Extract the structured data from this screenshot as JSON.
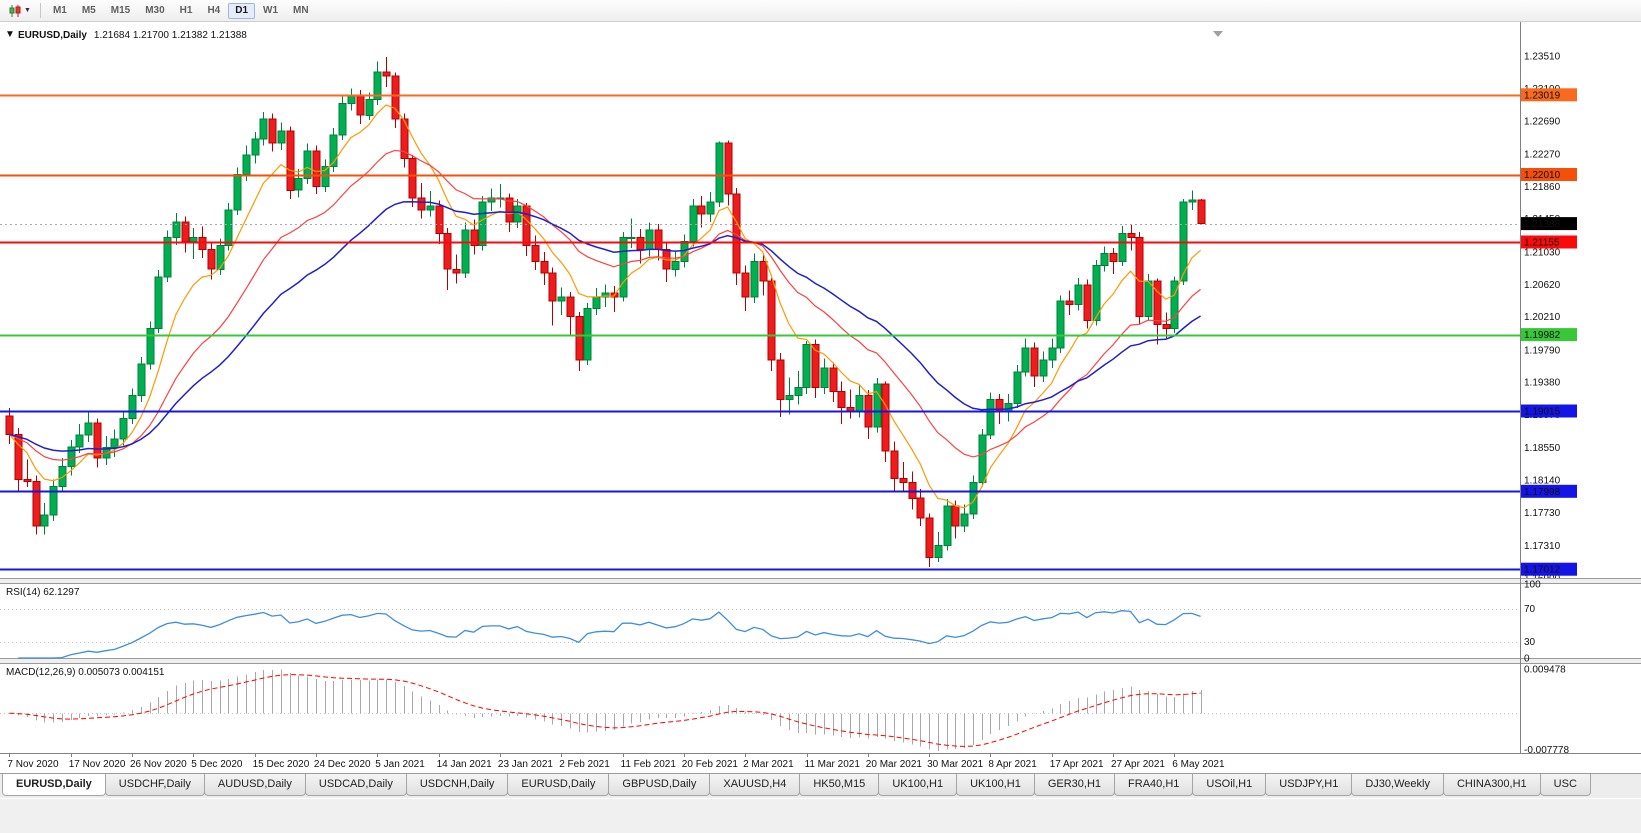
{
  "toolbar": {
    "timeframes": [
      "M1",
      "M5",
      "M15",
      "M30",
      "H1",
      "H4",
      "D1",
      "W1",
      "MN"
    ],
    "active_timeframe": "D1"
  },
  "chart": {
    "collapse_icon": "▼",
    "title_symbol": "EURUSD,Daily",
    "title_ohlc": "1.21684 1.21700 1.21382 1.21388"
  },
  "rsi": {
    "label": "RSI(14) 62.1297",
    "period": 14,
    "levels": [
      70,
      30
    ],
    "axis_labels": [
      "100",
      "70",
      "30",
      "0"
    ],
    "axis_values": [
      100,
      70,
      30,
      0
    ],
    "line_color": "#3E8EDE",
    "current": 62.1297
  },
  "macd": {
    "label": "MACD(12,26,9) 0.005073 0.004151",
    "fast": 12,
    "slow": 26,
    "signal": 9,
    "axis_top_label": "0.009478",
    "axis_bottom_label": "-0.007778",
    "axis_top_value": 0.009478,
    "axis_bottom_value": -0.007778,
    "histogram_color": "#A8A8A8",
    "signal_color": "#FF0000",
    "current_macd": 0.005073,
    "current_signal": 0.004151
  },
  "chart_data": {
    "type": "candlestick",
    "symbol": "EURUSD",
    "timeframe": "Daily",
    "last_candle": {
      "open": 1.21684,
      "high": 1.217,
      "low": 1.21382,
      "close": 1.21388
    },
    "colors": {
      "bull_fill": "#00B050",
      "bull_stroke": "#00803A",
      "bear_fill": "#EE1C1C",
      "bear_stroke": "#B40000",
      "axis_line": "#808080",
      "current_line": "#A8A8A8"
    },
    "y_axis": {
      "max": 1.2384,
      "min": 1.169,
      "tick_labels": [
        "1.23510",
        "1.23100",
        "1.22690",
        "1.22270",
        "1.21860",
        "1.21450",
        "1.21030",
        "1.20620",
        "1.20210",
        "1.19790",
        "1.19380",
        "1.18970",
        "1.18550",
        "1.18140",
        "1.17730",
        "1.17310",
        "1.16900"
      ]
    },
    "x_axis": {
      "label_indices": [
        0,
        7,
        14,
        21,
        28,
        35,
        42,
        49,
        56,
        63,
        70,
        77,
        84,
        91,
        98,
        105,
        112,
        119,
        126,
        133
      ],
      "labels": [
        "7 Nov 2020",
        "17 Nov 2020",
        "26 Nov 2020",
        "5 Dec 2020",
        "15 Dec 2020",
        "24 Dec 2020",
        "5 Jan 2021",
        "14 Jan 2021",
        "23 Jan 2021",
        "2 Feb 2021",
        "11 Feb 2021",
        "20 Feb 2021",
        "2 Mar 2021",
        "11 Mar 2021",
        "20 Mar 2021",
        "30 Mar 2021",
        "8 Apr 2021",
        "17 Apr 2021",
        "27 Apr 2021",
        "6 May 2021"
      ]
    },
    "moving_averages": [
      {
        "name": "ma-fast",
        "period": 8,
        "color": "#FF9900",
        "width": 1.2
      },
      {
        "name": "ma-mid",
        "period": 20,
        "color": "#FF4040",
        "width": 1.2
      },
      {
        "name": "ma-slow",
        "period": 35,
        "color": "#2020CC",
        "width": 1.5
      }
    ],
    "hlines": [
      {
        "price": 1.23019,
        "label": "1.23019",
        "color": "#F96A1C"
      },
      {
        "price": 1.2201,
        "label": "1.22010",
        "color": "#F4500A"
      },
      {
        "price": 1.21155,
        "label": "1.21155",
        "color": "#FA0A0A"
      },
      {
        "price": 1.19982,
        "label": "1.19982",
        "color": "#37C837"
      },
      {
        "price": 1.19015,
        "label": "1.19015",
        "color": "#1414E6"
      },
      {
        "price": 1.17998,
        "label": "1.17998",
        "color": "#1414E6"
      },
      {
        "price": 1.17012,
        "label": "1.17012",
        "color": "#1414E6"
      }
    ],
    "current_price": {
      "value": 1.21388,
      "label": "1.21388",
      "badge_color": "#000000"
    },
    "candles": [
      [
        1.1895,
        1.1905,
        1.186,
        1.1872
      ],
      [
        1.1872,
        1.188,
        1.18,
        1.1815
      ],
      [
        1.1815,
        1.184,
        1.1805,
        1.1812
      ],
      [
        1.1812,
        1.182,
        1.1745,
        1.1756
      ],
      [
        1.1756,
        1.1785,
        1.1745,
        1.177
      ],
      [
        1.177,
        1.1815,
        1.1762,
        1.1806
      ],
      [
        1.1806,
        1.1842,
        1.1798,
        1.1831
      ],
      [
        1.1831,
        1.1865,
        1.182,
        1.1856
      ],
      [
        1.1856,
        1.1885,
        1.1848,
        1.1871
      ],
      [
        1.1871,
        1.19,
        1.1862,
        1.1886
      ],
      [
        1.1886,
        1.1892,
        1.183,
        1.1842
      ],
      [
        1.1842,
        1.187,
        1.1833,
        1.1855
      ],
      [
        1.1855,
        1.1878,
        1.1843,
        1.1866
      ],
      [
        1.1866,
        1.19,
        1.1858,
        1.1892
      ],
      [
        1.1892,
        1.193,
        1.1885,
        1.1921
      ],
      [
        1.1921,
        1.197,
        1.1913,
        1.1961
      ],
      [
        1.1961,
        1.2015,
        1.1954,
        1.2006
      ],
      [
        1.2006,
        1.208,
        1.2,
        1.2071
      ],
      [
        1.2071,
        1.213,
        1.2065,
        1.2121
      ],
      [
        1.2121,
        1.2152,
        1.2112,
        1.2141
      ],
      [
        1.2141,
        1.2148,
        1.2102,
        1.2116
      ],
      [
        1.2116,
        1.2133,
        1.2094,
        1.2121
      ],
      [
        1.2121,
        1.2135,
        1.2095,
        1.2106
      ],
      [
        1.2106,
        1.2114,
        1.2068,
        1.2081
      ],
      [
        1.2081,
        1.212,
        1.2074,
        1.2111
      ],
      [
        1.2111,
        1.2165,
        1.2105,
        1.2156
      ],
      [
        1.2156,
        1.221,
        1.215,
        1.2201
      ],
      [
        1.2201,
        1.2238,
        1.2193,
        1.2226
      ],
      [
        1.2226,
        1.2255,
        1.2215,
        1.2246
      ],
      [
        1.2246,
        1.228,
        1.2238,
        1.2271
      ],
      [
        1.2271,
        1.2278,
        1.223,
        1.2241
      ],
      [
        1.2241,
        1.2267,
        1.2232,
        1.2256
      ],
      [
        1.2256,
        1.2262,
        1.217,
        1.2181
      ],
      [
        1.2181,
        1.2208,
        1.2172,
        1.2196
      ],
      [
        1.2196,
        1.224,
        1.2189,
        1.2231
      ],
      [
        1.2231,
        1.2238,
        1.2176,
        1.2186
      ],
      [
        1.2186,
        1.222,
        1.2179,
        1.2211
      ],
      [
        1.2211,
        1.226,
        1.2204,
        1.2251
      ],
      [
        1.2251,
        1.23,
        1.2245,
        1.2291
      ],
      [
        1.2291,
        1.231,
        1.2282,
        1.2301
      ],
      [
        1.2301,
        1.2308,
        1.2265,
        1.2276
      ],
      [
        1.2276,
        1.2305,
        1.227,
        1.2296
      ],
      [
        1.2296,
        1.2344,
        1.2289,
        1.2331
      ],
      [
        1.2331,
        1.235,
        1.2312,
        1.2326
      ],
      [
        1.2326,
        1.233,
        1.226,
        1.2271
      ],
      [
        1.2271,
        1.2278,
        1.221,
        1.2221
      ],
      [
        1.2221,
        1.2226,
        1.216,
        1.2171
      ],
      [
        1.2171,
        1.219,
        1.2145,
        1.2156
      ],
      [
        1.2156,
        1.218,
        1.2148,
        1.2161
      ],
      [
        1.2161,
        1.2168,
        1.2113,
        1.2126
      ],
      [
        1.2126,
        1.2133,
        1.2055,
        1.2081
      ],
      [
        1.2081,
        1.21,
        1.2063,
        1.2076
      ],
      [
        1.2076,
        1.214,
        1.207,
        1.2131
      ],
      [
        1.2131,
        1.2144,
        1.21,
        1.2111
      ],
      [
        1.2111,
        1.2174,
        1.2105,
        1.2166
      ],
      [
        1.2166,
        1.2183,
        1.2155,
        1.2171
      ],
      [
        1.2171,
        1.2189,
        1.2159,
        1.2171
      ],
      [
        1.2171,
        1.2177,
        1.2128,
        1.2141
      ],
      [
        1.2141,
        1.217,
        1.2133,
        1.2161
      ],
      [
        1.2161,
        1.2165,
        1.2098,
        1.2111
      ],
      [
        1.2111,
        1.2124,
        1.208,
        1.2091
      ],
      [
        1.2091,
        1.2103,
        1.2061,
        1.2076
      ],
      [
        1.2076,
        1.2083,
        1.201,
        1.2041
      ],
      [
        1.2041,
        1.2058,
        1.2023,
        1.2046
      ],
      [
        1.2046,
        1.2052,
        1.1996,
        1.2021
      ],
      [
        1.2021,
        1.2027,
        1.1952,
        1.1966
      ],
      [
        1.1966,
        1.2038,
        1.196,
        1.2031
      ],
      [
        1.2031,
        1.2057,
        1.2023,
        1.2046
      ],
      [
        1.2046,
        1.2062,
        1.2033,
        1.2051
      ],
      [
        1.2051,
        1.206,
        1.2027,
        1.2046
      ],
      [
        1.2046,
        1.2128,
        1.204,
        1.2121
      ],
      [
        1.2121,
        1.2145,
        1.2108,
        1.2121
      ],
      [
        1.2121,
        1.2132,
        1.2088,
        1.2106
      ],
      [
        1.2106,
        1.214,
        1.2097,
        1.2131
      ],
      [
        1.2131,
        1.2138,
        1.2092,
        1.2106
      ],
      [
        1.2106,
        1.2116,
        1.2065,
        1.2081
      ],
      [
        1.2081,
        1.2105,
        1.2072,
        1.2091
      ],
      [
        1.2091,
        1.2125,
        1.2083,
        1.2116
      ],
      [
        1.2116,
        1.217,
        1.211,
        1.2161
      ],
      [
        1.2161,
        1.2174,
        1.2134,
        1.2151
      ],
      [
        1.2151,
        1.2179,
        1.2141,
        1.2166
      ],
      [
        1.2166,
        1.2243,
        1.216,
        1.2241
      ],
      [
        1.2241,
        1.2244,
        1.2162,
        1.2176
      ],
      [
        1.2176,
        1.2184,
        1.2061,
        1.2076
      ],
      [
        1.2076,
        1.2086,
        1.2028,
        1.2046
      ],
      [
        1.2046,
        1.2101,
        1.2038,
        1.2091
      ],
      [
        1.2091,
        1.2101,
        1.2048,
        1.2066
      ],
      [
        1.2066,
        1.207,
        1.1952,
        1.1966
      ],
      [
        1.1966,
        1.1975,
        1.1894,
        1.1916
      ],
      [
        1.1916,
        1.1944,
        1.1897,
        1.1921
      ],
      [
        1.1921,
        1.1952,
        1.191,
        1.1931
      ],
      [
        1.1931,
        1.199,
        1.1923,
        1.1986
      ],
      [
        1.1986,
        1.1992,
        1.1918,
        1.1931
      ],
      [
        1.1931,
        1.1968,
        1.1923,
        1.1956
      ],
      [
        1.1956,
        1.1963,
        1.1913,
        1.1926
      ],
      [
        1.1926,
        1.1939,
        1.1885,
        1.1906
      ],
      [
        1.1906,
        1.1929,
        1.1892,
        1.1901
      ],
      [
        1.1901,
        1.1935,
        1.1893,
        1.1921
      ],
      [
        1.1921,
        1.1928,
        1.1866,
        1.1881
      ],
      [
        1.1881,
        1.1943,
        1.1874,
        1.1936
      ],
      [
        1.1936,
        1.1939,
        1.1837,
        1.1851
      ],
      [
        1.1851,
        1.1863,
        1.18,
        1.1816
      ],
      [
        1.1816,
        1.1837,
        1.1798,
        1.1811
      ],
      [
        1.1811,
        1.1825,
        1.1777,
        1.1791
      ],
      [
        1.1791,
        1.1803,
        1.1756,
        1.1766
      ],
      [
        1.1766,
        1.1772,
        1.1704,
        1.1716
      ],
      [
        1.1716,
        1.1748,
        1.171,
        1.1731
      ],
      [
        1.1731,
        1.179,
        1.1725,
        1.1781
      ],
      [
        1.1781,
        1.1788,
        1.174,
        1.1756
      ],
      [
        1.1756,
        1.1783,
        1.1748,
        1.1771
      ],
      [
        1.1771,
        1.182,
        1.1765,
        1.1811
      ],
      [
        1.1811,
        1.1879,
        1.1806,
        1.1871
      ],
      [
        1.1871,
        1.1925,
        1.1866,
        1.1916
      ],
      [
        1.1916,
        1.1923,
        1.1885,
        1.1901
      ],
      [
        1.1901,
        1.1923,
        1.1888,
        1.1911
      ],
      [
        1.1911,
        1.196,
        1.1905,
        1.1951
      ],
      [
        1.1951,
        1.1993,
        1.1945,
        1.1981
      ],
      [
        1.1981,
        1.1988,
        1.1932,
        1.1946
      ],
      [
        1.1946,
        1.1977,
        1.1938,
        1.1966
      ],
      [
        1.1966,
        1.1993,
        1.1956,
        1.1981
      ],
      [
        1.1981,
        1.2048,
        1.1975,
        1.2041
      ],
      [
        1.2041,
        1.2054,
        1.2023,
        1.2036
      ],
      [
        1.2036,
        1.207,
        1.2029,
        1.2061
      ],
      [
        1.2061,
        1.2068,
        1.2006,
        1.2016
      ],
      [
        1.2016,
        1.2093,
        1.201,
        1.2086
      ],
      [
        1.2086,
        1.211,
        1.2078,
        1.2101
      ],
      [
        1.2101,
        1.2108,
        1.2075,
        1.2091
      ],
      [
        1.2091,
        1.2136,
        1.2085,
        1.2126
      ],
      [
        1.2126,
        1.2138,
        1.2105,
        1.2121
      ],
      [
        1.2121,
        1.2128,
        1.2011,
        1.2021
      ],
      [
        1.2021,
        1.2075,
        1.2016,
        1.2066
      ],
      [
        1.2066,
        1.2069,
        1.1986,
        1.2011
      ],
      [
        1.2011,
        1.2026,
        1.1994,
        1.2006
      ],
      [
        1.2006,
        1.2072,
        1.2,
        1.2066
      ],
      [
        1.2066,
        1.217,
        1.2061,
        1.2166
      ],
      [
        1.2166,
        1.2181,
        1.2156,
        1.2169
      ],
      [
        1.21684,
        1.217,
        1.21382,
        1.21388
      ]
    ]
  },
  "tabs": [
    {
      "label": "EURUSD,Daily",
      "active": true
    },
    {
      "label": "USDCHF,Daily",
      "active": false
    },
    {
      "label": "AUDUSD,Daily",
      "active": false
    },
    {
      "label": "USDCAD,Daily",
      "active": false
    },
    {
      "label": "USDCNH,Daily",
      "active": false
    },
    {
      "label": "EURUSD,Daily",
      "active": false
    },
    {
      "label": "GBPUSD,Daily",
      "active": false
    },
    {
      "label": "XAUUSD,H4",
      "active": false
    },
    {
      "label": "HK50,M15",
      "active": false
    },
    {
      "label": "UK100,H1",
      "active": false
    },
    {
      "label": "UK100,H1",
      "active": false
    },
    {
      "label": "GER30,H1",
      "active": false
    },
    {
      "label": "FRA40,H1",
      "active": false
    },
    {
      "label": "USOil,H1",
      "active": false
    },
    {
      "label": "USDJPY,H1",
      "active": false
    },
    {
      "label": "DJ30,Weekly",
      "active": false
    },
    {
      "label": "CHINA300,H1",
      "active": false
    },
    {
      "label": "USC",
      "active": false
    }
  ]
}
